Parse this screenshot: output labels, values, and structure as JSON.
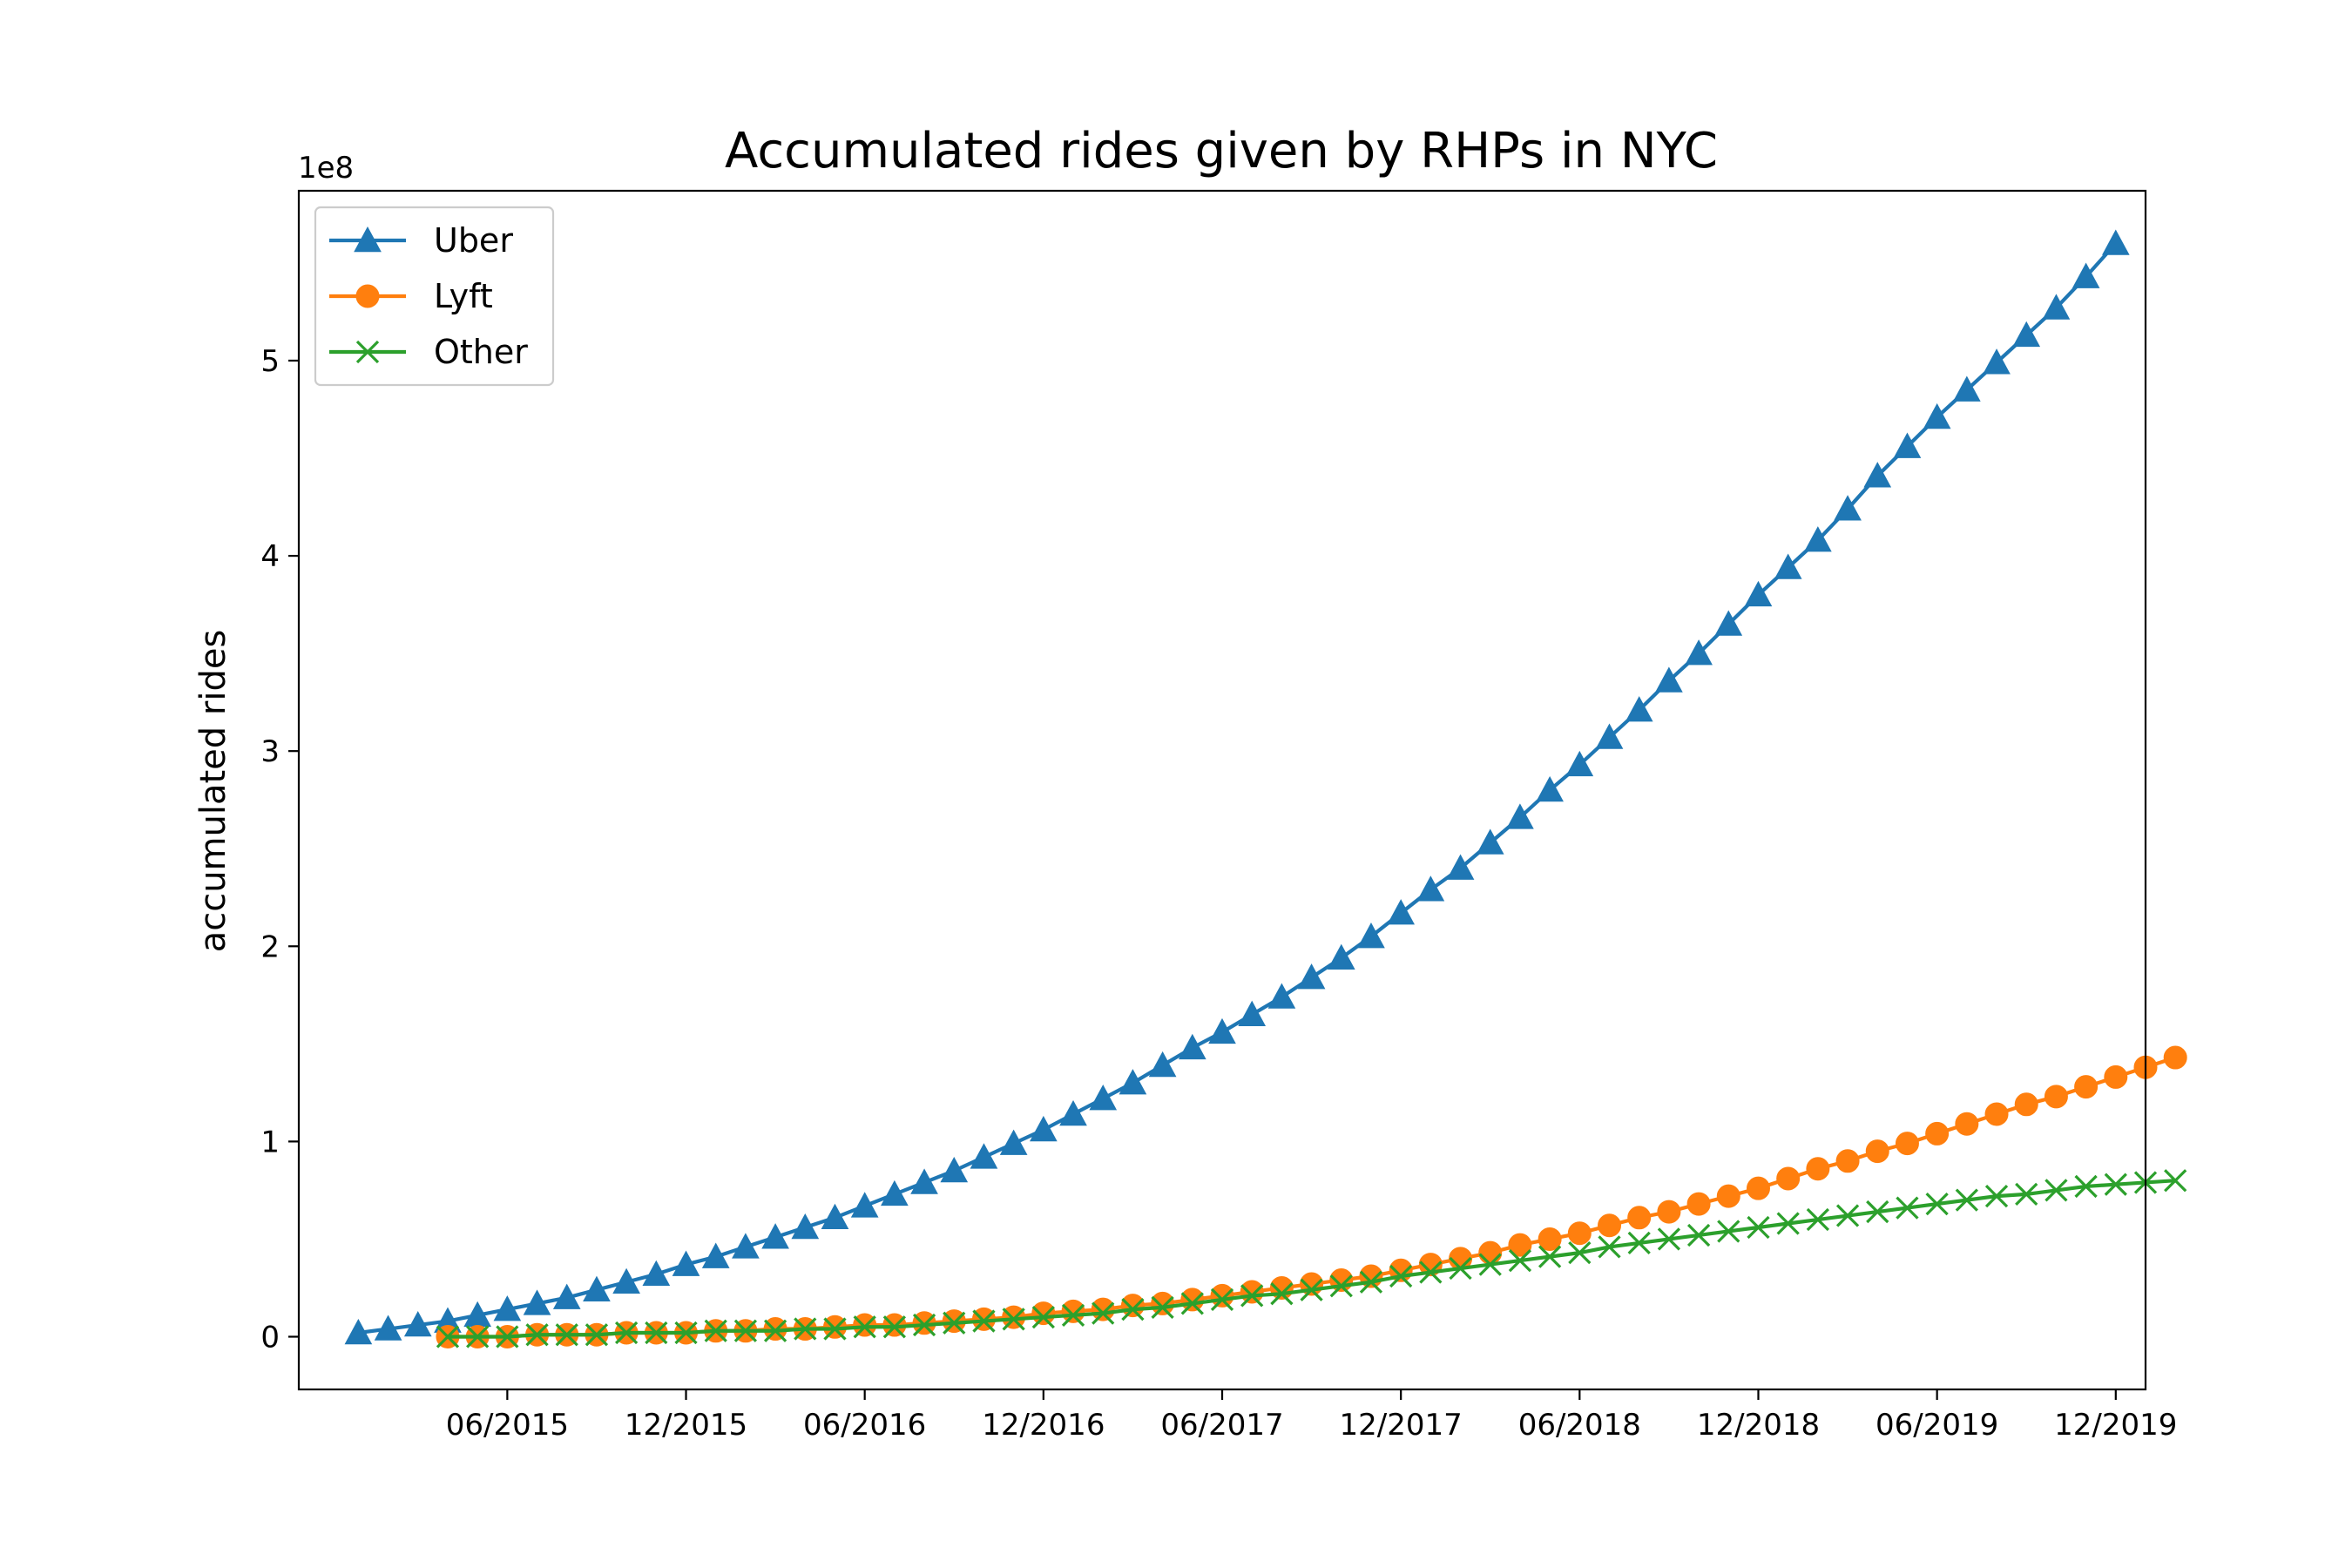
{
  "chart_data": {
    "type": "line",
    "title": "Accumulated rides given by RHPs in NYC",
    "xlabel": "",
    "ylabel": "accumulated rides",
    "y_offset_label": "1e8",
    "x_tick_labels": [
      "06/2015",
      "12/2015",
      "06/2016",
      "12/2016",
      "06/2017",
      "12/2017",
      "06/2018",
      "12/2018",
      "06/2019",
      "12/2019"
    ],
    "y_ticks": [
      0,
      1,
      2,
      3,
      4,
      5
    ],
    "ylim": [
      -0.27,
      5.87
    ],
    "xlim": [
      "2014-11",
      "2020-01"
    ],
    "legend_position": "upper-left",
    "grid": false,
    "series": [
      {
        "name": "Uber",
        "color": "#1f77b4",
        "marker": "triangle",
        "x_start": "2015-01",
        "values": [
          0.02,
          0.04,
          0.06,
          0.08,
          0.11,
          0.14,
          0.17,
          0.2,
          0.24,
          0.28,
          0.32,
          0.37,
          0.41,
          0.46,
          0.51,
          0.56,
          0.61,
          0.67,
          0.73,
          0.79,
          0.85,
          0.92,
          0.99,
          1.06,
          1.14,
          1.22,
          1.3,
          1.39,
          1.48,
          1.56,
          1.65,
          1.74,
          1.84,
          1.94,
          2.05,
          2.17,
          2.29,
          2.4,
          2.53,
          2.66,
          2.8,
          2.93,
          3.07,
          3.21,
          3.36,
          3.5,
          3.65,
          3.8,
          3.94,
          4.08,
          4.24,
          4.41,
          4.56,
          4.71,
          4.85,
          4.99,
          5.13,
          5.27,
          5.43,
          5.6
        ]
      },
      {
        "name": "Lyft",
        "color": "#ff7f0e",
        "marker": "circle",
        "x_start": "2015-04",
        "values": [
          0.0,
          0.0,
          0.0,
          0.01,
          0.01,
          0.01,
          0.02,
          0.02,
          0.02,
          0.03,
          0.03,
          0.04,
          0.04,
          0.05,
          0.06,
          0.06,
          0.07,
          0.08,
          0.09,
          0.1,
          0.12,
          0.13,
          0.14,
          0.16,
          0.17,
          0.19,
          0.21,
          0.23,
          0.25,
          0.27,
          0.29,
          0.31,
          0.34,
          0.37,
          0.4,
          0.43,
          0.47,
          0.5,
          0.53,
          0.57,
          0.61,
          0.64,
          0.68,
          0.72,
          0.76,
          0.81,
          0.86,
          0.9,
          0.95,
          0.99,
          1.04,
          1.09,
          1.14,
          1.19,
          1.23,
          1.28,
          1.33,
          1.38,
          1.43
        ]
      },
      {
        "name": "Other",
        "color": "#2ca02c",
        "marker": "x",
        "x_start": "2015-04",
        "values": [
          0.0,
          0.0,
          0.0,
          0.01,
          0.01,
          0.01,
          0.02,
          0.02,
          0.02,
          0.03,
          0.03,
          0.03,
          0.04,
          0.04,
          0.05,
          0.05,
          0.06,
          0.07,
          0.08,
          0.09,
          0.1,
          0.11,
          0.12,
          0.14,
          0.15,
          0.17,
          0.19,
          0.21,
          0.22,
          0.24,
          0.26,
          0.28,
          0.31,
          0.33,
          0.35,
          0.37,
          0.39,
          0.41,
          0.43,
          0.46,
          0.48,
          0.5,
          0.52,
          0.54,
          0.56,
          0.58,
          0.6,
          0.62,
          0.64,
          0.66,
          0.68,
          0.7,
          0.72,
          0.73,
          0.75,
          0.77,
          0.78,
          0.79,
          0.8
        ]
      }
    ]
  }
}
